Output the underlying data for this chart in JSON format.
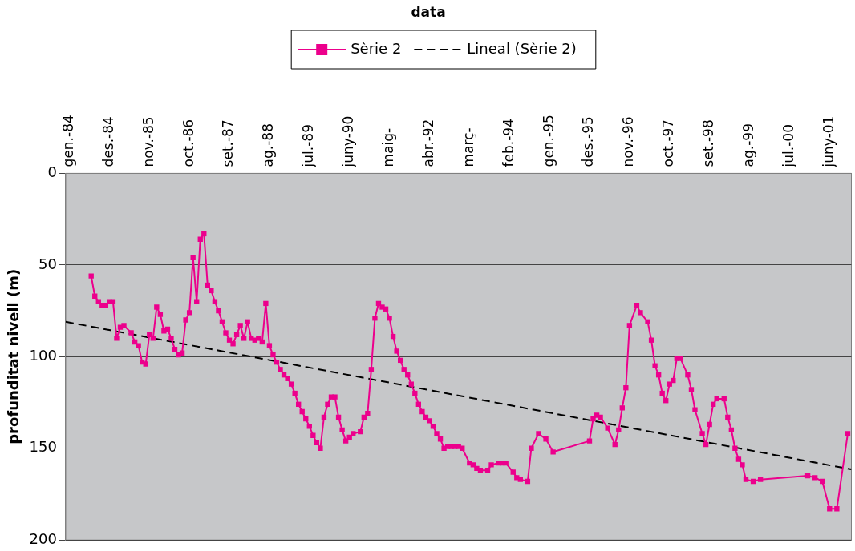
{
  "chart_data": {
    "type": "line",
    "title": "data",
    "ylabel": "profunditat nivell (m)",
    "xlim": [
      "1983-12",
      "2001-12"
    ],
    "xticks": [
      {
        "value": "1984-01",
        "label": "gen.-84"
      },
      {
        "value": "1984-12",
        "label": "des.-84"
      },
      {
        "value": "1985-11",
        "label": "nov.-85"
      },
      {
        "value": "1986-10",
        "label": "oct.-86"
      },
      {
        "value": "1987-09",
        "label": "set.-87"
      },
      {
        "value": "1988-08",
        "label": "ag.-88"
      },
      {
        "value": "1989-07",
        "label": "jul.-89"
      },
      {
        "value": "1990-06",
        "label": "juny-90"
      },
      {
        "value": "1991-05",
        "label": "maig-"
      },
      {
        "value": "1992-04",
        "label": "abr.-92"
      },
      {
        "value": "1993-03",
        "label": "març-"
      },
      {
        "value": "1994-02",
        "label": "feb.-94"
      },
      {
        "value": "1995-01",
        "label": "gen.-95"
      },
      {
        "value": "1995-12",
        "label": "des.-95"
      },
      {
        "value": "1996-11",
        "label": "nov.-96"
      },
      {
        "value": "1997-10",
        "label": "oct.-97"
      },
      {
        "value": "1998-09",
        "label": "set.-98"
      },
      {
        "value": "1999-08",
        "label": "ag.-99"
      },
      {
        "value": "2000-07",
        "label": "jul.-00"
      },
      {
        "value": "2001-06",
        "label": "juny-01"
      }
    ],
    "ylim": [
      200,
      0
    ],
    "yticks": [
      0,
      50,
      100,
      150,
      200
    ],
    "grid": "y",
    "legend": "top",
    "series": [
      {
        "name": "Sèrie 2",
        "color": "#ec008c",
        "marker": "square",
        "line_style": "solid",
        "x": [
          "1984-07",
          "1984-08",
          "1984-09",
          "1984-10",
          "1984-11",
          "1984-12",
          "1985-01",
          "1985-02",
          "1985-03",
          "1985-04",
          "1985-06",
          "1985-07",
          "1985-08",
          "1985-09",
          "1985-10",
          "1985-11",
          "1985-12",
          "1986-01",
          "1986-02",
          "1986-03",
          "1986-04",
          "1986-05",
          "1986-06",
          "1986-07",
          "1986-08",
          "1986-09",
          "1986-10",
          "1986-11",
          "1986-12",
          "1987-01",
          "1987-02",
          "1987-03",
          "1987-04",
          "1987-05",
          "1987-06",
          "1987-07",
          "1987-08",
          "1987-09",
          "1987-10",
          "1987-11",
          "1987-12",
          "1988-01",
          "1988-02",
          "1988-03",
          "1988-04",
          "1988-05",
          "1988-06",
          "1988-07",
          "1988-08",
          "1988-09",
          "1988-10",
          "1988-11",
          "1988-12",
          "1989-01",
          "1989-02",
          "1989-03",
          "1989-04",
          "1989-05",
          "1989-06",
          "1989-07",
          "1989-08",
          "1989-09",
          "1989-10",
          "1989-11",
          "1989-12",
          "1990-01",
          "1990-02",
          "1990-03",
          "1990-04",
          "1990-05",
          "1990-06",
          "1990-07",
          "1990-09",
          "1990-10",
          "1990-11",
          "1990-12",
          "1991-01",
          "1991-02",
          "1991-03",
          "1991-04",
          "1991-05",
          "1991-06",
          "1991-07",
          "1991-08",
          "1991-09",
          "1991-10",
          "1991-11",
          "1991-12",
          "1992-01",
          "1992-02",
          "1992-03",
          "1992-04",
          "1992-05",
          "1992-06",
          "1992-07",
          "1992-08",
          "1992-09",
          "1992-10",
          "1992-11",
          "1992-12",
          "1993-01",
          "1993-03",
          "1993-04",
          "1993-05",
          "1993-06",
          "1993-08",
          "1993-09",
          "1993-11",
          "1993-12",
          "1994-01",
          "1994-03",
          "1994-04",
          "1994-05",
          "1994-07",
          "1994-08",
          "1994-10",
          "1994-12",
          "1995-02",
          "1995-12",
          "1996-01",
          "1996-02",
          "1996-03",
          "1996-05",
          "1996-07",
          "1996-08",
          "1996-09",
          "1996-10",
          "1996-11",
          "1997-01",
          "1997-02",
          "1997-04",
          "1997-05",
          "1997-06",
          "1997-07",
          "1997-08",
          "1997-09",
          "1997-10",
          "1997-11",
          "1997-12",
          "1998-01",
          "1998-03",
          "1998-04",
          "1998-05",
          "1998-07",
          "1998-08",
          "1998-09",
          "1998-10",
          "1998-11",
          "1999-01",
          "1999-02",
          "1999-03",
          "1999-04",
          "1999-05",
          "1999-06",
          "1999-07",
          "1999-09",
          "1999-11",
          "2000-12",
          "2001-02",
          "2001-04",
          "2001-06",
          "2001-08",
          "2001-11"
        ],
        "values": [
          56,
          67,
          70,
          72,
          72,
          70,
          70,
          90,
          84,
          83,
          87,
          92,
          94,
          103,
          104,
          88,
          90,
          73,
          77,
          86,
          85,
          90,
          96,
          99,
          98,
          80,
          76,
          46,
          70,
          36,
          33,
          61,
          64,
          70,
          75,
          81,
          87,
          91,
          93,
          88,
          83,
          90,
          81,
          90,
          91,
          90,
          92,
          71,
          94,
          99,
          103,
          107,
          110,
          112,
          115,
          120,
          126,
          130,
          134,
          138,
          143,
          147,
          150,
          133,
          126,
          122,
          122,
          133,
          140,
          146,
          144,
          142,
          141,
          133,
          131,
          107,
          79,
          71,
          73,
          74,
          79,
          89,
          97,
          102,
          107,
          110,
          115,
          120,
          126,
          130,
          133,
          135,
          138,
          142,
          145,
          150,
          149,
          149,
          149,
          149,
          150,
          158,
          159,
          161,
          162,
          162,
          159,
          158,
          158,
          158,
          163,
          166,
          167,
          168,
          150,
          142,
          145,
          152,
          146,
          134,
          132,
          133,
          139,
          148,
          140,
          128,
          117,
          83,
          72,
          76,
          81,
          91,
          105,
          110,
          120,
          124,
          115,
          113,
          101,
          101,
          110,
          118,
          129,
          142,
          148,
          137,
          126,
          123,
          123,
          133,
          140,
          150,
          156,
          159,
          167,
          168,
          167,
          165,
          166,
          168,
          183,
          183,
          142
        ]
      },
      {
        "name": "Lineal (Sèrie 2)",
        "color": "#000000",
        "marker": "none",
        "line_style": "dashed",
        "x": [
          "1983-12",
          "2001-12"
        ],
        "values": [
          81,
          161.5
        ]
      }
    ]
  }
}
